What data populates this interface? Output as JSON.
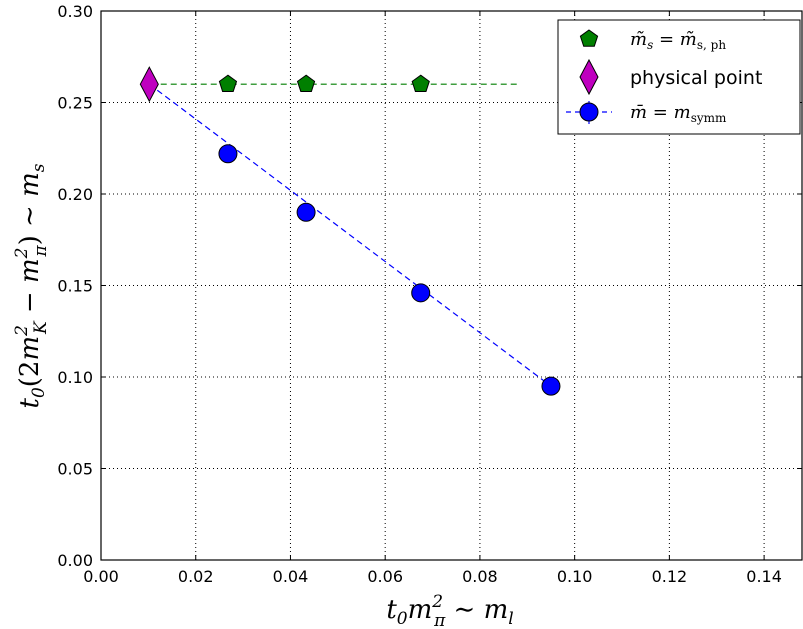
{
  "chart_data": {
    "type": "scatter",
    "xlabel": "t₀m²π ∼ mₗ",
    "ylabel": "t₀(2m²K − m²π) ∼ mₛ",
    "xlim": [
      0.0,
      0.148
    ],
    "ylim": [
      0.0,
      0.3
    ],
    "x_ticks": [
      "0.00",
      "0.02",
      "0.04",
      "0.06",
      "0.08",
      "0.10",
      "0.12",
      "0.14"
    ],
    "y_ticks": [
      "0.00",
      "0.05",
      "0.10",
      "0.15",
      "0.20",
      "0.25",
      "0.30"
    ],
    "grid": true,
    "legend_position": "top-right",
    "series": [
      {
        "name": "m̃ₛ = m̃ₛ,ph",
        "marker": "pentagon",
        "color": "#007f00",
        "points": [
          {
            "x": 0.0268,
            "y": 0.26
          },
          {
            "x": 0.0433,
            "y": 0.26
          },
          {
            "x": 0.0675,
            "y": 0.26
          }
        ],
        "line": {
          "style": "dashed",
          "x": [
            0.0105,
            0.088
          ],
          "y": [
            0.26,
            0.26
          ]
        }
      },
      {
        "name": "physical point",
        "marker": "diamond",
        "color": "#bf00bf",
        "points": [
          {
            "x": 0.0102,
            "y": 0.26
          }
        ]
      },
      {
        "name": "m̄ = m_symm",
        "marker": "circle",
        "color": "#0000ff",
        "points": [
          {
            "x": 0.0268,
            "y": 0.222
          },
          {
            "x": 0.0433,
            "y": 0.19
          },
          {
            "x": 0.0675,
            "y": 0.146
          },
          {
            "x": 0.095,
            "y": 0.095
          }
        ],
        "line": {
          "style": "dashed",
          "x": [
            0.0102,
            0.095
          ],
          "y": [
            0.26,
            0.095
          ]
        }
      }
    ]
  }
}
